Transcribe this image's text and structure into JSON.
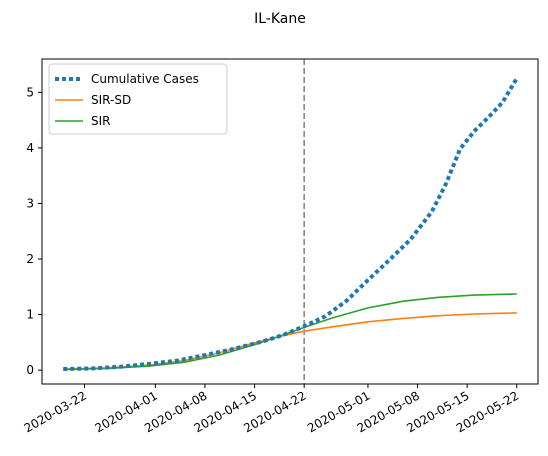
{
  "chart_data": {
    "type": "line",
    "title": "IL-Kane",
    "xlabel": "",
    "ylabel": "",
    "ylim": [
      -0.25,
      5.6
    ],
    "xlim": [
      "2020-03-16",
      "2020-05-25"
    ],
    "x_ticks": [
      "2020-03-22",
      "2020-04-01",
      "2020-04-08",
      "2020-04-15",
      "2020-04-22",
      "2020-05-01",
      "2020-05-08",
      "2020-05-15",
      "2020-05-22"
    ],
    "y_ticks": [
      0,
      1,
      2,
      3,
      4,
      5
    ],
    "grid": false,
    "legend_position": "top-left",
    "vline": {
      "x": "2020-04-22",
      "style": "dashed",
      "color": "#7f7f7f"
    },
    "series": [
      {
        "name": "Cumulative Cases",
        "style": "dotted",
        "color": "#1f77b4",
        "points": [
          [
            "2020-03-19",
            0.02
          ],
          [
            "2020-03-23",
            0.03
          ],
          [
            "2020-03-27",
            0.06
          ],
          [
            "2020-03-31",
            0.11
          ],
          [
            "2020-04-04",
            0.17
          ],
          [
            "2020-04-08",
            0.27
          ],
          [
            "2020-04-12",
            0.38
          ],
          [
            "2020-04-16",
            0.51
          ],
          [
            "2020-04-19",
            0.63
          ],
          [
            "2020-04-22",
            0.79
          ],
          [
            "2020-04-25",
            0.97
          ],
          [
            "2020-04-28",
            1.25
          ],
          [
            "2020-05-01",
            1.62
          ],
          [
            "2020-05-04",
            1.98
          ],
          [
            "2020-05-07",
            2.35
          ],
          [
            "2020-05-10",
            2.85
          ],
          [
            "2020-05-12",
            3.35
          ],
          [
            "2020-05-14",
            3.98
          ],
          [
            "2020-05-16",
            4.3
          ],
          [
            "2020-05-18",
            4.55
          ],
          [
            "2020-05-20",
            4.82
          ],
          [
            "2020-05-22",
            5.25
          ]
        ]
      },
      {
        "name": "SIR-SD",
        "style": "solid",
        "color": "#ff7f0e",
        "points": [
          [
            "2020-03-19",
            0.02
          ],
          [
            "2020-03-25",
            0.04
          ],
          [
            "2020-03-31",
            0.09
          ],
          [
            "2020-04-05",
            0.17
          ],
          [
            "2020-04-10",
            0.31
          ],
          [
            "2020-04-15",
            0.49
          ],
          [
            "2020-04-19",
            0.62
          ],
          [
            "2020-04-22",
            0.7
          ],
          [
            "2020-04-26",
            0.78
          ],
          [
            "2020-05-01",
            0.87
          ],
          [
            "2020-05-06",
            0.93
          ],
          [
            "2020-05-11",
            0.98
          ],
          [
            "2020-05-16",
            1.01
          ],
          [
            "2020-05-22",
            1.03
          ]
        ]
      },
      {
        "name": "SIR",
        "style": "solid",
        "color": "#2ca02c",
        "points": [
          [
            "2020-03-19",
            0.01
          ],
          [
            "2020-03-25",
            0.03
          ],
          [
            "2020-03-31",
            0.07
          ],
          [
            "2020-04-05",
            0.14
          ],
          [
            "2020-04-10",
            0.27
          ],
          [
            "2020-04-15",
            0.46
          ],
          [
            "2020-04-19",
            0.63
          ],
          [
            "2020-04-22",
            0.77
          ],
          [
            "2020-04-26",
            0.94
          ],
          [
            "2020-05-01",
            1.12
          ],
          [
            "2020-05-06",
            1.24
          ],
          [
            "2020-05-11",
            1.31
          ],
          [
            "2020-05-16",
            1.35
          ],
          [
            "2020-05-22",
            1.37
          ]
        ]
      }
    ]
  }
}
